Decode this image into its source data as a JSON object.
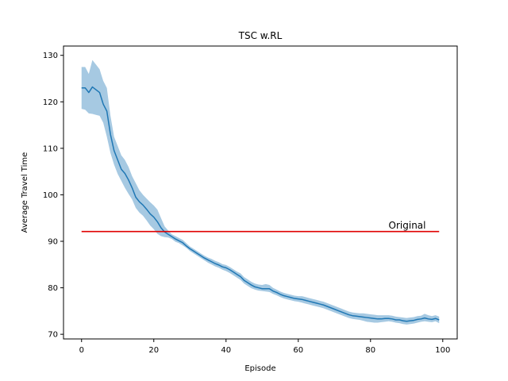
{
  "chart_data": {
    "type": "line",
    "title": "TSC w.RL",
    "xlabel": "Episode",
    "ylabel": "Average Travel Time",
    "xlim": [
      -5,
      104
    ],
    "ylim": [
      69,
      132
    ],
    "xticks": [
      0,
      20,
      40,
      60,
      80,
      100
    ],
    "yticks": [
      70,
      80,
      90,
      100,
      110,
      120,
      130
    ],
    "grid": false,
    "series": [
      {
        "kind": "mean-with-band",
        "color": "#1f77b4",
        "band_color": "#a6c9e2",
        "x": [
          0,
          1,
          2,
          3,
          4,
          5,
          6,
          7,
          8,
          9,
          10,
          11,
          12,
          13,
          14,
          15,
          16,
          17,
          18,
          19,
          20,
          21,
          22,
          23,
          24,
          25,
          26,
          27,
          28,
          29,
          30,
          31,
          32,
          33,
          34,
          35,
          36,
          37,
          38,
          39,
          40,
          41,
          42,
          43,
          44,
          45,
          46,
          47,
          48,
          49,
          50,
          51,
          52,
          53,
          54,
          55,
          56,
          57,
          58,
          59,
          60,
          61,
          62,
          63,
          64,
          65,
          66,
          67,
          68,
          69,
          70,
          71,
          72,
          73,
          74,
          75,
          76,
          77,
          78,
          79,
          80,
          81,
          82,
          83,
          84,
          85,
          86,
          87,
          88,
          89,
          90,
          91,
          92,
          93,
          94,
          95,
          96,
          97,
          98,
          99
        ],
        "mean": [
          123,
          123,
          122,
          123.2,
          122.6,
          122,
          119.5,
          118,
          113,
          109.5,
          107.5,
          105.5,
          104.6,
          103.2,
          101.5,
          99.5,
          98.5,
          97.8,
          96.9,
          95.9,
          95.2,
          94.2,
          92.9,
          92,
          91.5,
          91,
          90.5,
          90.1,
          89.7,
          89,
          88.4,
          87.9,
          87.4,
          86.9,
          86.4,
          86,
          85.6,
          85.2,
          84.9,
          84.5,
          84.3,
          83.9,
          83.4,
          82.9,
          82.4,
          81.6,
          81.1,
          80.6,
          80.2,
          80,
          79.8,
          79.8,
          79.8,
          79.3,
          79,
          78.6,
          78.3,
          78.1,
          77.9,
          77.7,
          77.6,
          77.5,
          77.3,
          77.1,
          76.9,
          76.7,
          76.5,
          76.3,
          76,
          75.7,
          75.4,
          75.1,
          74.8,
          74.5,
          74.2,
          74,
          73.9,
          73.8,
          73.7,
          73.6,
          73.5,
          73.4,
          73.3,
          73.3,
          73.4,
          73.4,
          73.3,
          73.1,
          73.1,
          72.9,
          72.8,
          72.9,
          73,
          73.2,
          73.3,
          73.5,
          73.3,
          73.2,
          73.4,
          73.1
        ],
        "lower": [
          118.5,
          118.3,
          117.5,
          117.4,
          117.2,
          117,
          115.5,
          112.5,
          109,
          106.5,
          104.5,
          103,
          101.5,
          100.2,
          99,
          97.2,
          96.2,
          95.5,
          94.5,
          93.4,
          92.6,
          91.6,
          91.1,
          90.9,
          90.8,
          90.5,
          89.9,
          89.6,
          89.1,
          88.6,
          87.9,
          87.4,
          86.9,
          86.4,
          85.9,
          85.4,
          85,
          84.6,
          84.3,
          83.9,
          83.6,
          83.2,
          82.7,
          82.2,
          81.7,
          80.9,
          80.4,
          79.9,
          79.6,
          79.4,
          79.3,
          79.2,
          79.1,
          78.7,
          78.4,
          78,
          77.7,
          77.5,
          77.3,
          77.1,
          77,
          76.8,
          76.6,
          76.4,
          76.2,
          76,
          75.8,
          75.6,
          75.3,
          75,
          74.7,
          74.4,
          74.1,
          73.8,
          73.5,
          73.3,
          73.2,
          73.1,
          72.9,
          72.7,
          72.6,
          72.5,
          72.5,
          72.6,
          72.7,
          72.8,
          72.7,
          72.5,
          72.4,
          72.2,
          72.1,
          72.2,
          72.3,
          72.5,
          72.7,
          72.8,
          72.7,
          72.6,
          72.8,
          72.4
        ],
        "upper": [
          127.5,
          127.5,
          126,
          129,
          128,
          127,
          124.5,
          123,
          117,
          112.5,
          110.5,
          108.5,
          107.5,
          106,
          104,
          102.5,
          101,
          100,
          99.2,
          98.4,
          97.7,
          96.8,
          95,
          93.2,
          92.3,
          91.5,
          91.1,
          90.7,
          90.3,
          89.6,
          88.9,
          88.4,
          87.9,
          87.4,
          86.9,
          86.5,
          86.2,
          85.8,
          85.5,
          85.1,
          84.9,
          84.5,
          84,
          83.5,
          83.1,
          82.3,
          81.8,
          81.3,
          80.9,
          80.7,
          80.6,
          80.8,
          80.6,
          80,
          79.6,
          79.2,
          78.9,
          78.7,
          78.5,
          78.3,
          78.2,
          78.2,
          78,
          77.8,
          77.6,
          77.4,
          77.2,
          77,
          76.7,
          76.4,
          76.1,
          75.8,
          75.5,
          75.2,
          74.9,
          74.7,
          74.6,
          74.5,
          74.5,
          74.4,
          74.3,
          74.2,
          74.1,
          74.1,
          74.1,
          74.1,
          74,
          73.8,
          73.7,
          73.6,
          73.5,
          73.6,
          73.7,
          73.9,
          74,
          74.4,
          74.1,
          73.9,
          74.1,
          73.8
        ]
      },
      {
        "kind": "hline",
        "name": "Original",
        "color": "#e00000",
        "x": [
          0,
          99
        ],
        "y": 92.1
      }
    ],
    "annotations": [
      {
        "text": "Original",
        "x": 85,
        "y": 92.7
      }
    ]
  }
}
